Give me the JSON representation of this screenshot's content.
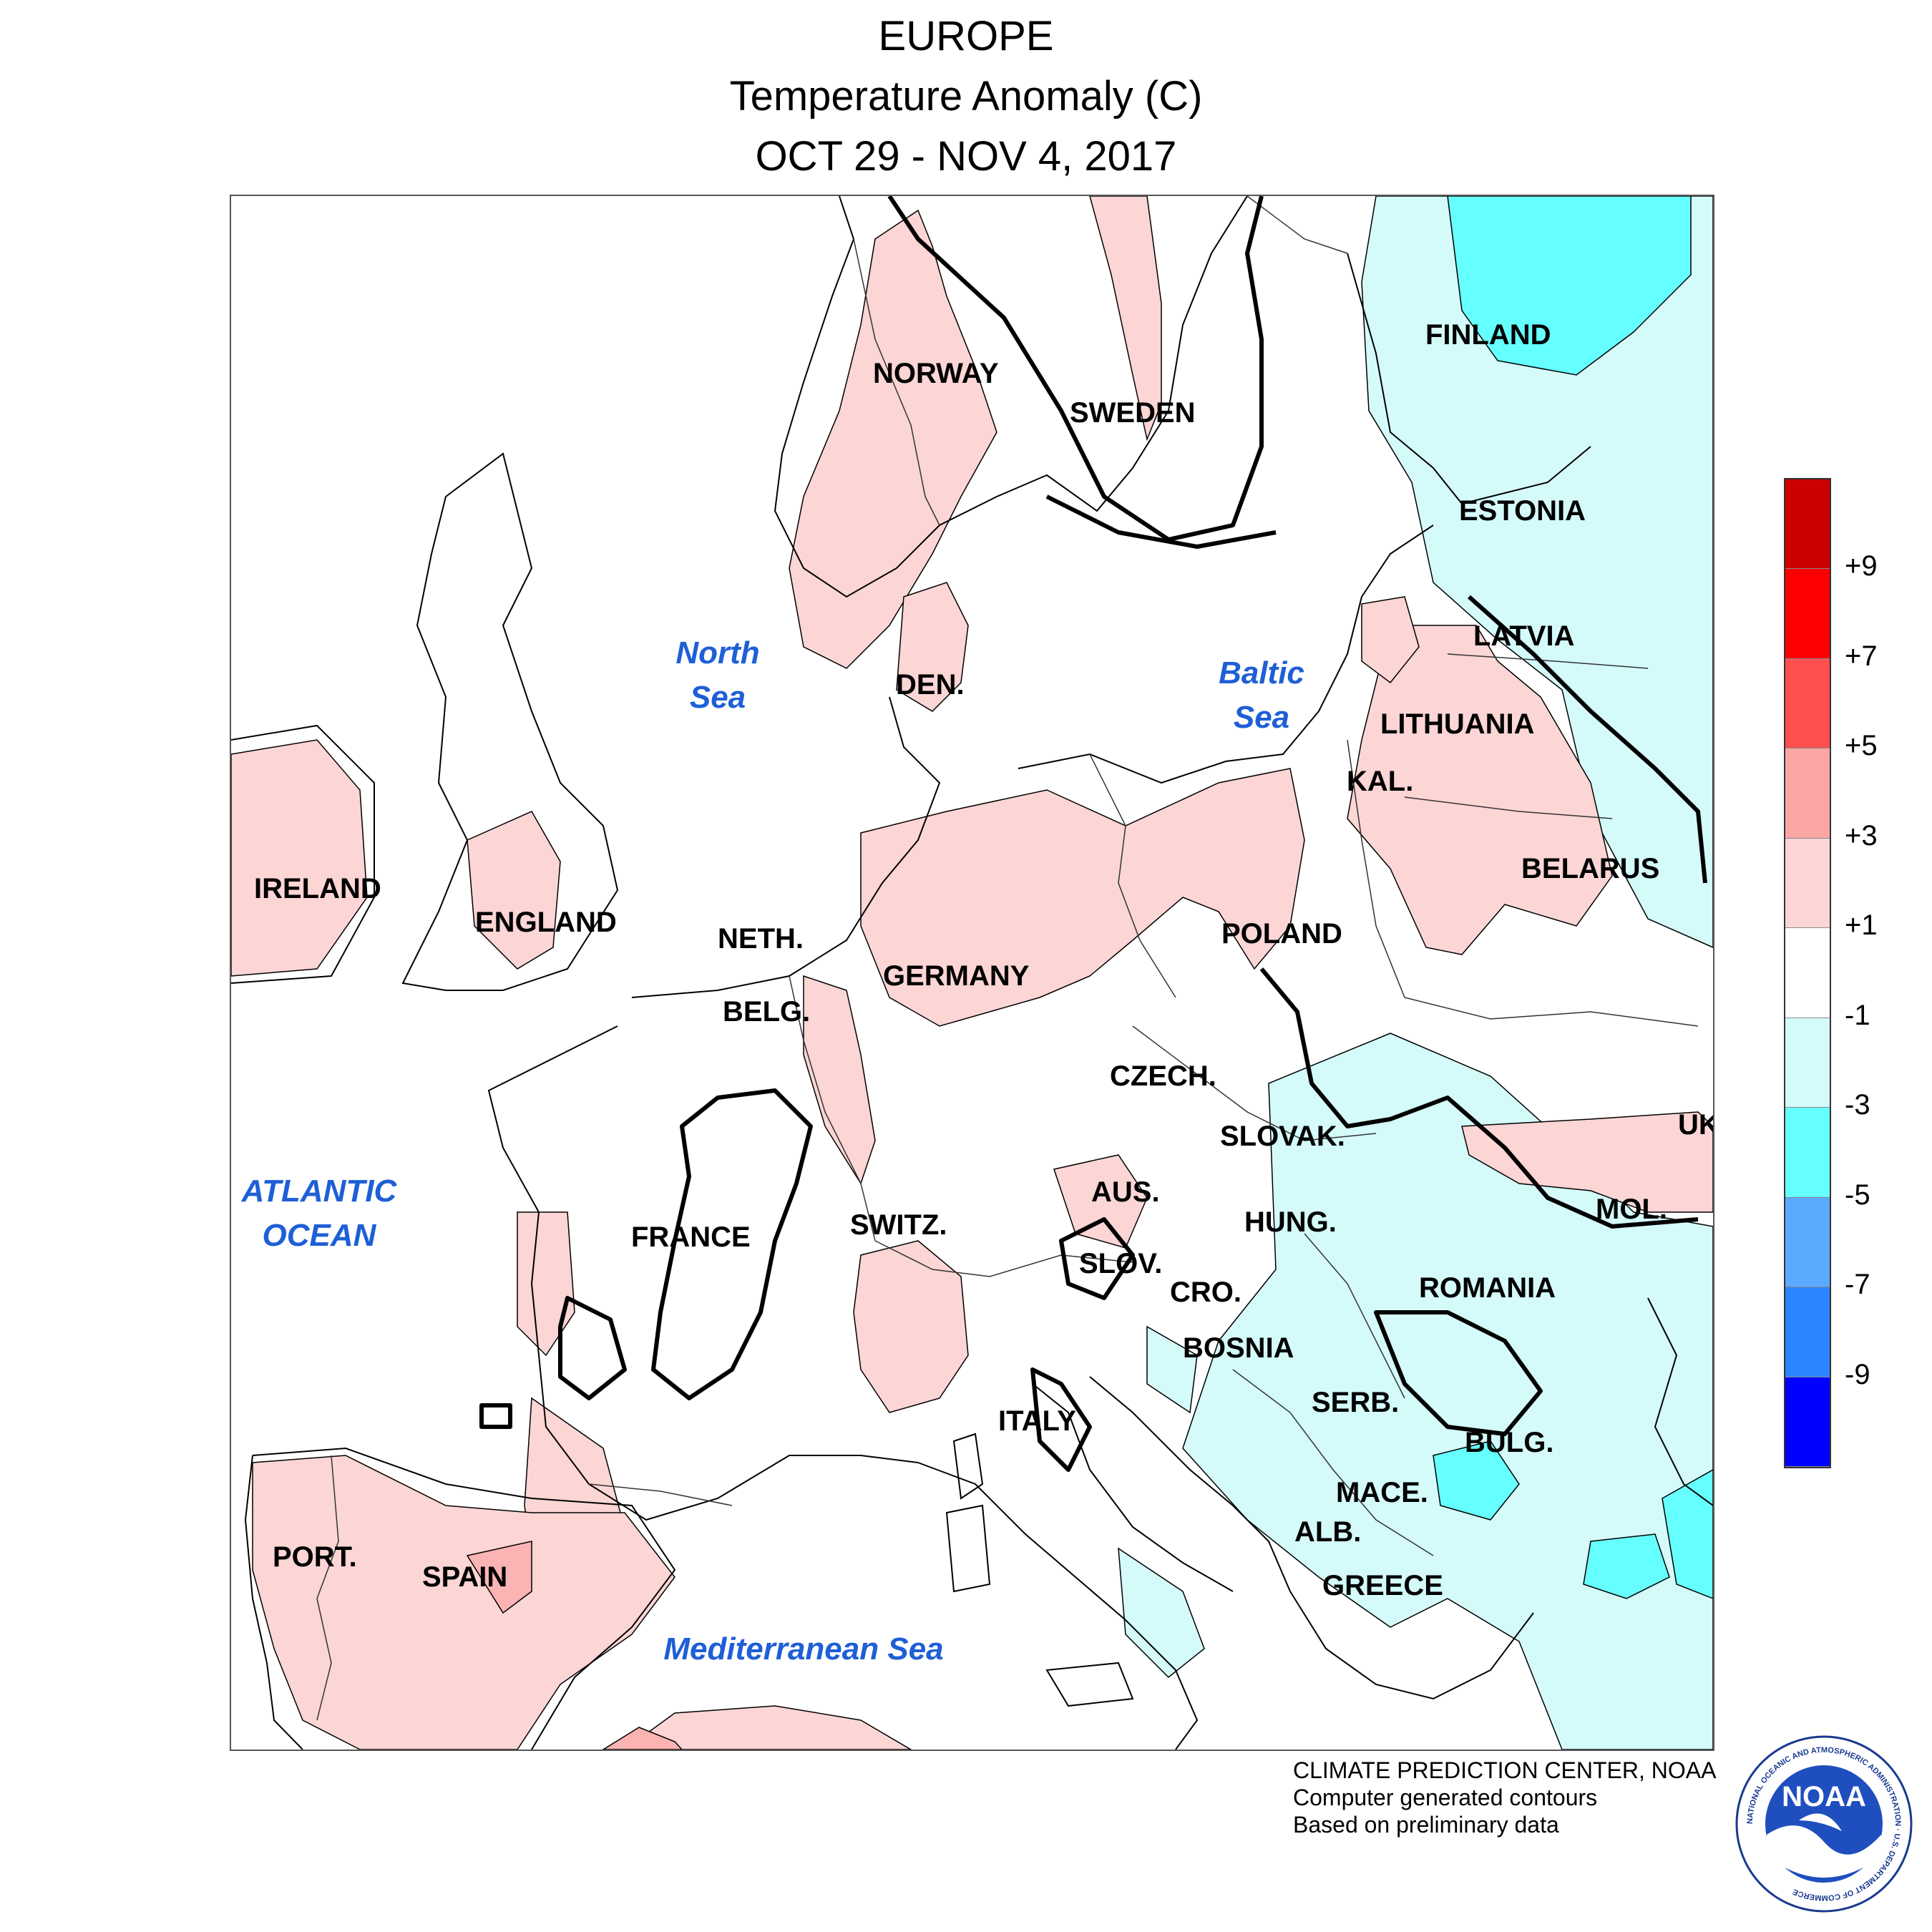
{
  "header": {
    "region": "EUROPE",
    "variable": "Temperature Anomaly (C)",
    "period": "OCT 29 - NOV 4, 2017"
  },
  "colors": {
    "warm1": "#fcd5d5",
    "warm3": "#fcb3b3",
    "warm5": "#f87f7f",
    "warm7": "#ff4040",
    "warm9": "#ff0000",
    "warm_extreme": "#cc0000",
    "neutral": "#ffffff",
    "cool1": "#d4fafa",
    "cool3": "#66ffff",
    "cool5": "#5aaaff",
    "cool7": "#2b87ff",
    "cool9": "#0a5cff",
    "cool_extreme": "#0000ff",
    "land_outline": "#000000",
    "zero_contour": "#000000",
    "sea_label": "#1f5fd6"
  },
  "countries": [
    {
      "name": "NORWAY"
    },
    {
      "name": "SWEDEN"
    },
    {
      "name": "FINLAND"
    },
    {
      "name": "ESTONIA"
    },
    {
      "name": "LATVIA"
    },
    {
      "name": "LITHUANIA"
    },
    {
      "name": "KAL."
    },
    {
      "name": "BELARUS"
    },
    {
      "name": "DEN."
    },
    {
      "name": "IRELAND"
    },
    {
      "name": "ENGLAND"
    },
    {
      "name": "NETH."
    },
    {
      "name": "BELG."
    },
    {
      "name": "GERMANY"
    },
    {
      "name": "POLAND"
    },
    {
      "name": "CZECH."
    },
    {
      "name": "SLOVAK."
    },
    {
      "name": "UK"
    },
    {
      "name": "MOL."
    },
    {
      "name": "AUS."
    },
    {
      "name": "HUNG."
    },
    {
      "name": "SWITZ."
    },
    {
      "name": "FRANCE"
    },
    {
      "name": "SLOV."
    },
    {
      "name": "CRO."
    },
    {
      "name": "ROMANIA"
    },
    {
      "name": "BOSNIA"
    },
    {
      "name": "SERB."
    },
    {
      "name": "ITALY"
    },
    {
      "name": "BULG."
    },
    {
      "name": "MACE."
    },
    {
      "name": "ALB."
    },
    {
      "name": "GREECE"
    },
    {
      "name": "PORT."
    },
    {
      "name": "SPAIN"
    }
  ],
  "seas": [
    {
      "name": "North\nSea"
    },
    {
      "name": "Baltic\nSea"
    },
    {
      "name": "ATLANTIC\nOCEAN"
    },
    {
      "name": "Mediterranean Sea"
    }
  ],
  "legend": {
    "ticks": [
      "+9",
      "+7",
      "+5",
      "+3",
      "+1",
      "-1",
      "-3",
      "-5",
      "-7",
      "-9"
    ],
    "bins": [
      {
        "range": "> +9",
        "color": "#cc0000"
      },
      {
        "range": "+7 to +9",
        "color": "#ff0000"
      },
      {
        "range": "+5 to +7",
        "color": "#ff4f4f"
      },
      {
        "range": "+3 to +5",
        "color": "#fca5a5"
      },
      {
        "range": "+1 to +3",
        "color": "#fcd5d5"
      },
      {
        "range": "-1 to +1",
        "color": "#ffffff"
      },
      {
        "range": "-3 to -1",
        "color": "#d4fafa"
      },
      {
        "range": "-5 to -3",
        "color": "#66ffff"
      },
      {
        "range": "-7 to -5",
        "color": "#5aaaff"
      },
      {
        "range": "-9 to -7",
        "color": "#2b87ff"
      },
      {
        "range": "< -9",
        "color": "#0000ff"
      }
    ]
  },
  "credits": {
    "line1": "CLIMATE PREDICTION CENTER, NOAA",
    "line2": "Computer generated contours",
    "line3": "Based on preliminary data"
  },
  "logo": {
    "text": "NOAA",
    "ring_text": "NATIONAL OCEANIC AND ATMOSPHERIC ADMINISTRATION · U.S. DEPARTMENT OF COMMERCE"
  }
}
